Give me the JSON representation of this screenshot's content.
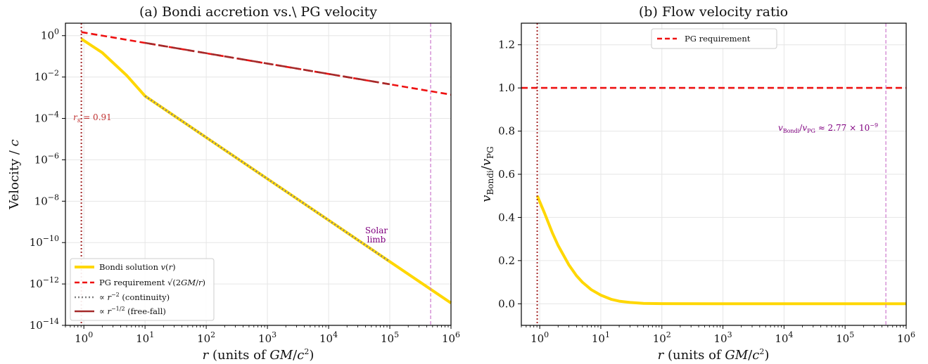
{
  "chart_data": [
    {
      "type": "line",
      "title": "(a) Bondi accretion vs.\\ PG velocity",
      "xlabel": "r (units of GM/c²)",
      "ylabel": "Velocity / c",
      "xscale": "log",
      "yscale": "log",
      "xlim": [
        0.5,
        1000000
      ],
      "ylim": [
        1e-14,
        4
      ],
      "x_ticks": [
        "10^0",
        "10^1",
        "10^2",
        "10^3",
        "10^4",
        "10^5",
        "10^6"
      ],
      "y_ticks": [
        "10^0",
        "10^-2",
        "10^-4",
        "10^-6",
        "10^-8",
        "10^-10",
        "10^-12",
        "10^-14"
      ],
      "grid": true,
      "legend_position": "lower-left",
      "series": [
        {
          "name": "Bondi solution v(r)",
          "color": "#FFD700",
          "style": "solid",
          "x": [
            0.91,
            2,
            5,
            10,
            100,
            1000,
            10000,
            100000,
            1000000
          ],
          "y": [
            0.7,
            0.15,
            0.012,
            0.0012,
            1.2e-05,
            1.2e-07,
            1.2e-09,
            1.2e-11,
            1.2e-13
          ]
        },
        {
          "name": "PG requirement √(2GM/r)",
          "color": "#EE1111",
          "style": "dashed",
          "x": [
            0.91,
            1000000
          ],
          "y": [
            1.48,
            0.00141
          ]
        },
        {
          "name": "∝ r^-2 (continuity)",
          "color": "#808080",
          "style": "dotted",
          "x": [
            10,
            100000
          ],
          "y": [
            0.0012,
            1.2e-11
          ]
        },
        {
          "name": "∝ r^-1/2 (free-fall)",
          "color": "#A52A2A",
          "style": "dashed-long",
          "x": [
            10,
            100000
          ],
          "y": [
            0.447,
            0.00447
          ]
        }
      ],
      "vlines": [
        {
          "x": 0.91,
          "color": "#A52A2A",
          "style": "dotted"
        },
        {
          "x": 465000,
          "color": "#CC77CC",
          "style": "dashed"
        }
      ],
      "annotations": [
        {
          "text": "r_s = 0.91",
          "x": 1.3,
          "y": 0.0001,
          "color": "#C03030"
        },
        {
          "text": "Solar limb",
          "x": 60000,
          "y": 3e-10,
          "color": "#800080"
        }
      ]
    },
    {
      "type": "line",
      "title": "(b) Flow velocity ratio",
      "xlabel": "r (units of GM/c²)",
      "ylabel": "v_Bondi / v_PG",
      "xscale": "log",
      "xlim": [
        0.5,
        1000000
      ],
      "ylim": [
        -0.1,
        1.3
      ],
      "x_ticks": [
        "10^0",
        "10^1",
        "10^2",
        "10^3",
        "10^4",
        "10^5",
        "10^6"
      ],
      "y_ticks": [
        "0.0",
        "0.2",
        "0.4",
        "0.6",
        "0.8",
        "1.0",
        "1.2"
      ],
      "grid": true,
      "legend_position": "upper-center",
      "series": [
        {
          "name": "",
          "color": "#FFD700",
          "style": "solid",
          "x": [
            0.91,
            1.2,
            1.6,
            2,
            3,
            4,
            5,
            7,
            10,
            15,
            20,
            30,
            50,
            100,
            1000,
            1000000
          ],
          "y": [
            0.5,
            0.42,
            0.33,
            0.27,
            0.18,
            0.13,
            0.1,
            0.065,
            0.04,
            0.02,
            0.012,
            0.006,
            0.002,
            0.0005,
            0.0,
            0.0
          ]
        },
        {
          "name": "PG requirement",
          "color": "#EE1111",
          "style": "dashed",
          "x": [
            0.5,
            1000000
          ],
          "y": [
            1.0,
            1.0
          ]
        }
      ],
      "vlines": [
        {
          "x": 0.91,
          "color": "#A52A2A",
          "style": "dotted"
        },
        {
          "x": 465000,
          "color": "#CC77CC",
          "style": "dashed"
        }
      ],
      "annotations": [
        {
          "text": "v_Bondi/v_PG ≈ 2.77 × 10^-9",
          "x": 8000,
          "y": 0.8,
          "color": "#800080"
        }
      ]
    }
  ]
}
